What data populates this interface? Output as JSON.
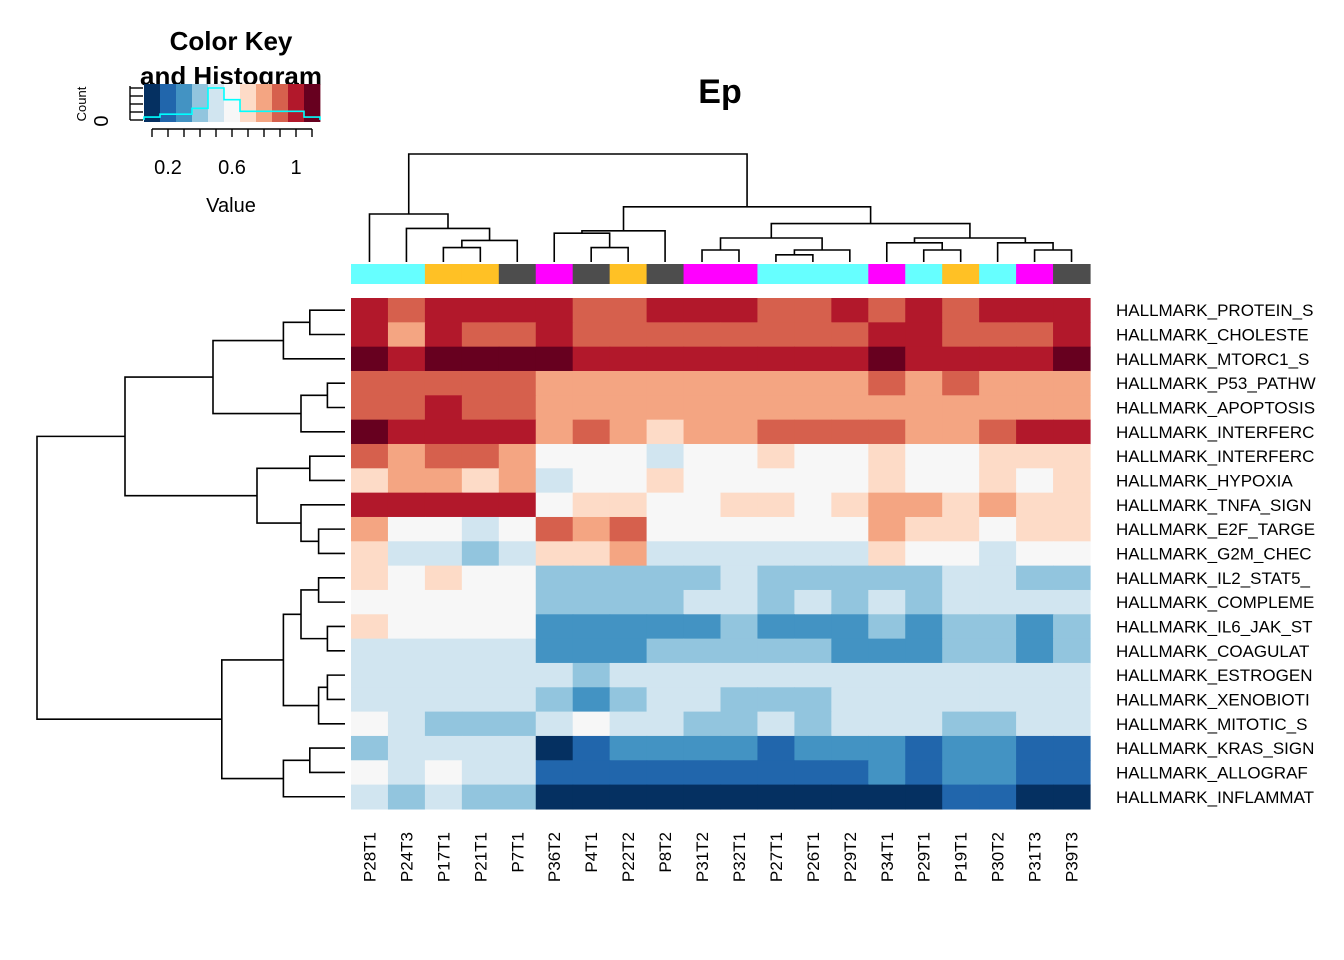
{
  "chart_data": {
    "type": "heatmap",
    "title": "Ep",
    "columns": [
      "P28T1",
      "P24T3",
      "P17T1",
      "P21T1",
      "P7T1",
      "P36T2",
      "P4T1",
      "P22T2",
      "P8T2",
      "P31T2",
      "P32T1",
      "P27T1",
      "P26T1",
      "P29T2",
      "P34T1",
      "P29T1",
      "P19T1",
      "P30T2",
      "P31T3",
      "P39T3"
    ],
    "rows": [
      "HALLMARK_PROTEIN_S",
      "HALLMARK_CHOLESTE",
      "HALLMARK_MTORC1_S",
      "HALLMARK_P53_PATHW",
      "HALLMARK_APOPTOSIS",
      "HALLMARK_INTERFERC",
      "HALLMARK_INTERFERC",
      "HALLMARK_HYPOXIA",
      "HALLMARK_TNFA_SIGN",
      "HALLMARK_E2F_TARGE",
      "HALLMARK_G2M_CHEC",
      "HALLMARK_IL2_STAT5_",
      "HALLMARK_COMPLEME",
      "HALLMARK_IL6_JAK_ST",
      "HALLMARK_COAGULAT",
      "HALLMARK_ESTROGEN",
      "HALLMARK_XENOBIOTI",
      "HALLMARK_MITOTIC_S",
      "HALLMARK_KRAS_SIGN",
      "HALLMARK_ALLOGRAF",
      "HALLMARK_INFLAMMAT"
    ],
    "column_group_colors": [
      "#66FFFF",
      "#66FFFF",
      "#FFC125",
      "#FFC125",
      "#4D4D4D",
      "#FF00FF",
      "#4D4D4D",
      "#FFC125",
      "#4D4D4D",
      "#FF00FF",
      "#FF00FF",
      "#66FFFF",
      "#66FFFF",
      "#66FFFF",
      "#FF00FF",
      "#66FFFF",
      "#FFC125",
      "#66FFFF",
      "#FF00FF",
      "#4D4D4D"
    ],
    "values": [
      [
        1.0,
        0.9,
        1.0,
        1.0,
        1.0,
        1.0,
        0.9,
        0.9,
        1.0,
        1.0,
        1.0,
        0.9,
        0.9,
        1.0,
        0.9,
        1.0,
        0.9,
        1.0,
        1.0,
        1.0
      ],
      [
        1.0,
        0.8,
        1.0,
        0.9,
        0.9,
        1.0,
        0.9,
        0.9,
        0.9,
        0.9,
        0.9,
        0.9,
        0.9,
        0.9,
        1.0,
        1.0,
        0.9,
        0.9,
        0.9,
        1.0
      ],
      [
        1.1,
        1.0,
        1.1,
        1.1,
        1.1,
        1.1,
        1.0,
        1.0,
        1.0,
        1.0,
        1.0,
        1.0,
        1.0,
        1.0,
        1.1,
        1.0,
        1.0,
        1.0,
        1.0,
        1.1
      ],
      [
        0.9,
        0.9,
        0.9,
        0.9,
        0.9,
        0.8,
        0.8,
        0.8,
        0.8,
        0.8,
        0.8,
        0.8,
        0.8,
        0.8,
        0.9,
        0.8,
        0.9,
        0.8,
        0.8,
        0.8
      ],
      [
        0.9,
        0.9,
        1.0,
        0.9,
        0.9,
        0.8,
        0.8,
        0.8,
        0.8,
        0.8,
        0.8,
        0.8,
        0.8,
        0.8,
        0.8,
        0.8,
        0.8,
        0.8,
        0.8,
        0.8
      ],
      [
        1.1,
        1.0,
        1.0,
        1.0,
        1.0,
        0.8,
        0.9,
        0.8,
        0.7,
        0.8,
        0.8,
        0.9,
        0.9,
        0.9,
        0.9,
        0.8,
        0.8,
        0.9,
        1.0,
        1.0
      ],
      [
        0.9,
        0.8,
        0.9,
        0.9,
        0.8,
        0.6,
        0.6,
        0.6,
        0.5,
        0.6,
        0.6,
        0.7,
        0.6,
        0.6,
        0.7,
        0.6,
        0.6,
        0.7,
        0.7,
        0.7
      ],
      [
        0.7,
        0.8,
        0.8,
        0.7,
        0.8,
        0.5,
        0.6,
        0.6,
        0.7,
        0.6,
        0.6,
        0.6,
        0.6,
        0.6,
        0.7,
        0.6,
        0.6,
        0.7,
        0.6,
        0.7
      ],
      [
        1.0,
        1.0,
        1.0,
        1.0,
        1.0,
        0.6,
        0.7,
        0.7,
        0.6,
        0.6,
        0.7,
        0.7,
        0.6,
        0.7,
        0.8,
        0.8,
        0.7,
        0.8,
        0.7,
        0.7
      ],
      [
        0.8,
        0.6,
        0.6,
        0.5,
        0.6,
        0.9,
        0.8,
        0.9,
        0.6,
        0.6,
        0.6,
        0.6,
        0.6,
        0.6,
        0.8,
        0.7,
        0.7,
        0.6,
        0.7,
        0.7
      ],
      [
        0.7,
        0.5,
        0.5,
        0.4,
        0.5,
        0.7,
        0.7,
        0.8,
        0.5,
        0.5,
        0.5,
        0.5,
        0.5,
        0.5,
        0.7,
        0.6,
        0.6,
        0.5,
        0.6,
        0.6
      ],
      [
        0.7,
        0.6,
        0.7,
        0.6,
        0.6,
        0.4,
        0.4,
        0.4,
        0.4,
        0.4,
        0.5,
        0.4,
        0.4,
        0.4,
        0.4,
        0.4,
        0.5,
        0.5,
        0.4,
        0.4
      ],
      [
        0.6,
        0.6,
        0.6,
        0.6,
        0.6,
        0.4,
        0.4,
        0.4,
        0.4,
        0.5,
        0.5,
        0.4,
        0.5,
        0.4,
        0.5,
        0.4,
        0.5,
        0.5,
        0.5,
        0.5
      ],
      [
        0.7,
        0.6,
        0.6,
        0.6,
        0.6,
        0.3,
        0.3,
        0.3,
        0.3,
        0.3,
        0.4,
        0.3,
        0.3,
        0.3,
        0.4,
        0.3,
        0.4,
        0.4,
        0.3,
        0.4
      ],
      [
        0.5,
        0.5,
        0.5,
        0.5,
        0.5,
        0.3,
        0.3,
        0.3,
        0.4,
        0.4,
        0.4,
        0.4,
        0.4,
        0.3,
        0.3,
        0.3,
        0.4,
        0.4,
        0.3,
        0.4
      ],
      [
        0.5,
        0.5,
        0.5,
        0.5,
        0.5,
        0.5,
        0.4,
        0.5,
        0.5,
        0.5,
        0.5,
        0.5,
        0.5,
        0.5,
        0.5,
        0.5,
        0.5,
        0.5,
        0.5,
        0.5
      ],
      [
        0.5,
        0.5,
        0.5,
        0.5,
        0.5,
        0.4,
        0.3,
        0.4,
        0.5,
        0.5,
        0.4,
        0.4,
        0.4,
        0.5,
        0.5,
        0.5,
        0.5,
        0.5,
        0.5,
        0.5
      ],
      [
        0.6,
        0.5,
        0.4,
        0.4,
        0.4,
        0.5,
        0.6,
        0.5,
        0.5,
        0.4,
        0.4,
        0.5,
        0.4,
        0.5,
        0.5,
        0.5,
        0.4,
        0.4,
        0.5,
        0.5
      ],
      [
        0.4,
        0.5,
        0.5,
        0.5,
        0.5,
        0.0,
        0.2,
        0.3,
        0.3,
        0.3,
        0.3,
        0.2,
        0.3,
        0.3,
        0.3,
        0.2,
        0.3,
        0.3,
        0.2,
        0.2
      ],
      [
        0.6,
        0.5,
        0.6,
        0.5,
        0.5,
        0.2,
        0.2,
        0.2,
        0.2,
        0.2,
        0.2,
        0.2,
        0.2,
        0.2,
        0.3,
        0.2,
        0.3,
        0.3,
        0.2,
        0.2
      ],
      [
        0.5,
        0.4,
        0.5,
        0.4,
        0.4,
        0.1,
        0.1,
        0.1,
        0.1,
        0.1,
        0.1,
        0.1,
        0.1,
        0.1,
        0.1,
        0.1,
        0.2,
        0.2,
        0.1,
        0.1
      ]
    ],
    "color_breaks": [
      0.05,
      0.15,
      0.25,
      0.35,
      0.45,
      0.55,
      0.65,
      0.75,
      0.85,
      0.95,
      1.05,
      1.15
    ],
    "palette": [
      "#053061",
      "#2166AC",
      "#4393C3",
      "#92C5DE",
      "#D1E5F0",
      "#F7F7F7",
      "#FDDBC7",
      "#F4A582",
      "#D6604D",
      "#B2182B",
      "#67001F"
    ],
    "key": {
      "title_line1": "Color Key",
      "title_line2": "and Histogram",
      "xlabel": "Value",
      "ylabel": "Count",
      "y_tick": "0",
      "x_ticks": [
        0.2,
        0.6,
        1
      ],
      "x_tick_labels": [
        "0.2",
        "0.6",
        "1"
      ],
      "histogram_color": "#00FFFF",
      "histogram_counts": [
        1,
        2,
        2,
        4,
        11,
        7,
        3,
        3,
        3,
        3,
        1
      ]
    }
  }
}
